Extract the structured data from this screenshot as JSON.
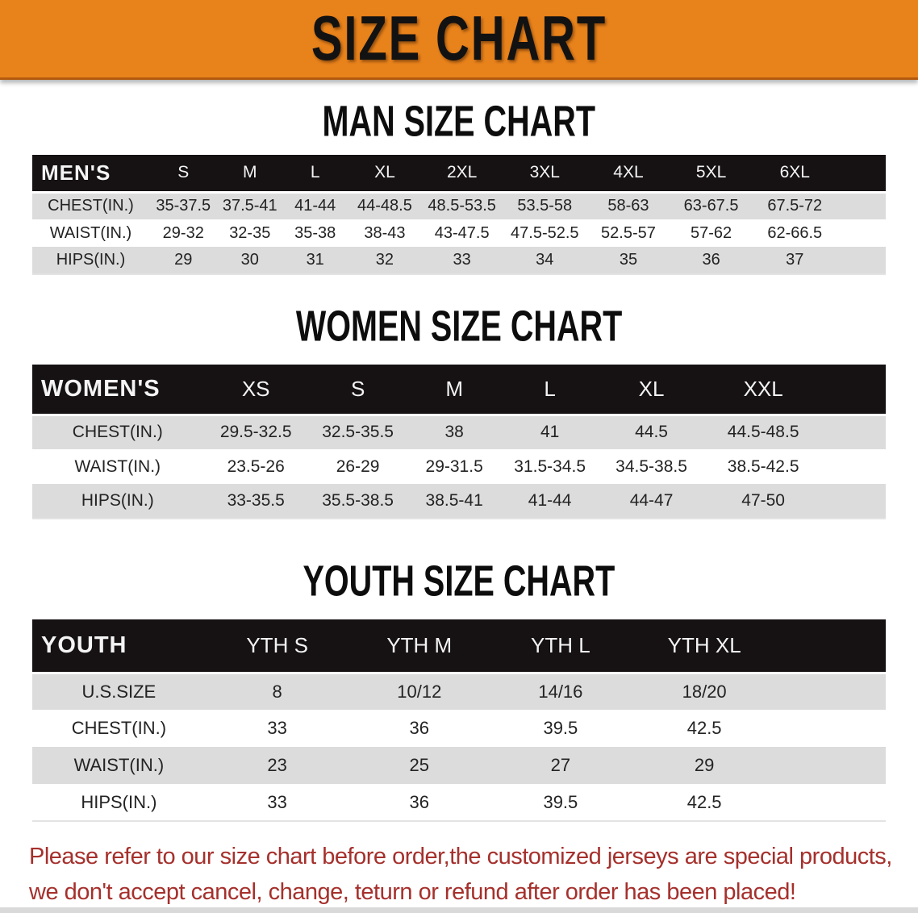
{
  "banner": {
    "title": "SIZE CHART"
  },
  "colors": {
    "banner_orange": "#E8821B",
    "banner_edge": "#B35B0F",
    "header_black": "#161213",
    "header_text": "#F4F4F4",
    "row_gray": "#DCDCDC",
    "notice_red": "#A5302C",
    "title_black": "#121212"
  },
  "sections": {
    "men": {
      "title": "MAN SIZE CHART"
    },
    "women": {
      "title": "WOMEN SIZE CHART"
    },
    "youth": {
      "title": "YOUTH SIZE CHART"
    }
  },
  "tables": {
    "men": {
      "label": "MEN'S",
      "sizes": [
        "S",
        "M",
        "L",
        "XL",
        "2XL",
        "3XL",
        "4XL",
        "5XL",
        "6XL"
      ],
      "rows": [
        {
          "label": "CHEST(IN.)",
          "values": [
            "35-37.5",
            "37.5-41",
            "41-44",
            "44-48.5",
            "48.5-53.5",
            "53.5-58",
            "58-63",
            "63-67.5",
            "67.5-72"
          ]
        },
        {
          "label": "WAIST(IN.)",
          "values": [
            "29-32",
            "32-35",
            "35-38",
            "38-43",
            "43-47.5",
            "47.5-52.5",
            "52.5-57",
            "57-62",
            "62-66.5"
          ]
        },
        {
          "label": "HIPS(IN.)",
          "values": [
            "29",
            "30",
            "31",
            "32",
            "33",
            "34",
            "35",
            "36",
            "37"
          ]
        }
      ]
    },
    "women": {
      "label": "WOMEN'S",
      "sizes": [
        "XS",
        "S",
        "M",
        "L",
        "XL",
        "XXL"
      ],
      "rows": [
        {
          "label": "CHEST(IN.)",
          "values": [
            "29.5-32.5",
            "32.5-35.5",
            "38",
            "41",
            "44.5",
            "44.5-48.5"
          ]
        },
        {
          "label": "WAIST(IN.)",
          "values": [
            "23.5-26",
            "26-29",
            "29-31.5",
            "31.5-34.5",
            "34.5-38.5",
            "38.5-42.5"
          ]
        },
        {
          "label": "HIPS(IN.)",
          "values": [
            "33-35.5",
            "35.5-38.5",
            "38.5-41",
            "41-44",
            "44-47",
            "47-50"
          ]
        }
      ]
    },
    "youth": {
      "label": "YOUTH",
      "sizes": [
        "YTH S",
        "YTH M",
        "YTH L",
        "YTH XL"
      ],
      "rows": [
        {
          "label": "U.S.SIZE",
          "values": [
            "8",
            "10/12",
            "14/16",
            "18/20"
          ]
        },
        {
          "label": "CHEST(IN.)",
          "values": [
            "33",
            "36",
            "39.5",
            "42.5"
          ]
        },
        {
          "label": "WAIST(IN.)",
          "values": [
            "23",
            "25",
            "27",
            "29"
          ]
        },
        {
          "label": "HIPS(IN.)",
          "values": [
            "33",
            "36",
            "39.5",
            "42.5"
          ]
        }
      ]
    }
  },
  "footer": {
    "line1": "Please refer to our size chart before order,the customized jerseys are special products,",
    "line2": "we don't accept cancel, change, teturn or refund after order has been placed!"
  }
}
